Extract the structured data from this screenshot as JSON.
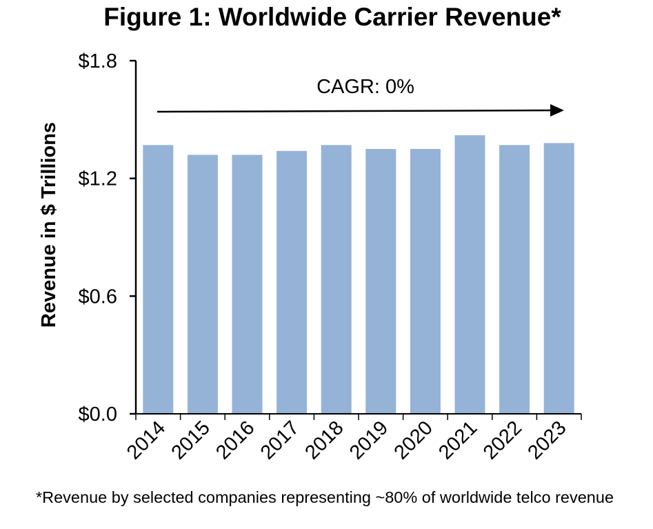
{
  "chart_data": {
    "type": "bar",
    "title": "Figure 1: Worldwide Carrier Revenue*",
    "xlabel": "",
    "ylabel": "Revenue in $ Trillions",
    "categories": [
      "2014",
      "2015",
      "2016",
      "2017",
      "2018",
      "2019",
      "2020",
      "2021",
      "2022",
      "2023"
    ],
    "values": [
      1.37,
      1.32,
      1.32,
      1.34,
      1.37,
      1.35,
      1.35,
      1.42,
      1.37,
      1.38
    ],
    "ylim": [
      0,
      1.8
    ],
    "yticks": [
      0.0,
      0.6,
      1.2,
      1.8
    ],
    "ytick_labels": [
      "$0.0",
      "$0.6",
      "$1.2",
      "$1.8"
    ],
    "grid": false,
    "legend": null,
    "bar_color": "#95B3D7",
    "annotations": [
      {
        "text": "CAGR: 0%",
        "type": "arrow",
        "from_category": "2014",
        "to_category": "2023"
      }
    ],
    "footnote": "*Revenue by selected companies representing ~80% of worldwide telco revenue"
  }
}
